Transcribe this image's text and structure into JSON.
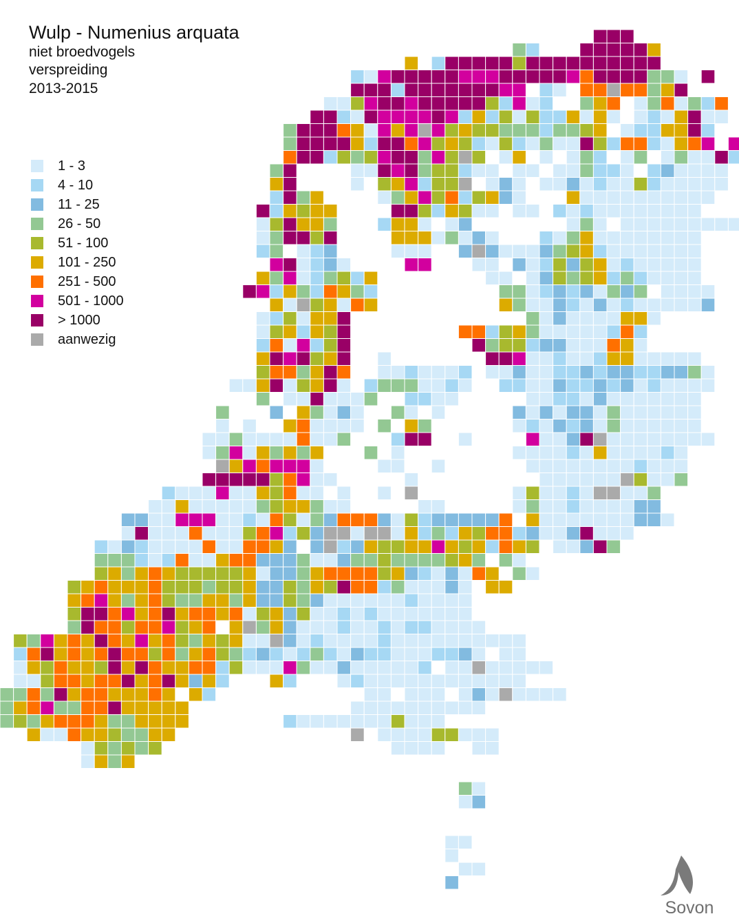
{
  "header": {
    "title": "Wulp - Numenius arquata",
    "lines": [
      "niet broedvogels",
      "verspreiding",
      "2013-2015"
    ]
  },
  "legend": [
    {
      "label": "1 - 3",
      "color": "#d4ebfa"
    },
    {
      "label": "4 - 10",
      "color": "#a6d8f4"
    },
    {
      "label": "11 - 25",
      "color": "#82bbe0"
    },
    {
      "label": "26 - 50",
      "color": "#93c893"
    },
    {
      "label": "51 - 100",
      "color": "#a8b92e"
    },
    {
      "label": "101 - 250",
      "color": "#dcab00"
    },
    {
      "label": "251 - 500",
      "color": "#ff7000"
    },
    {
      "label": "501 - 1000",
      "color": "#d2009e"
    },
    {
      "label": "> 1000",
      "color": "#990066"
    },
    {
      "label": "aanwezig",
      "color": "#aaaaaa"
    }
  ],
  "grid": [
    "............................................999",
    "......................................42...999996",
    "..............................6.29999959999999999",
    "..........................2189999988899999879999441 9",
    "..........................9992999999988 21.77a77469",
    "........................11589989999952812..467.1471427",
    ".......................99219888898262515226161.1216911",
    ".....................4999761868a8565544424456.1226692",
    ".....................49999629978565215214119527721678 8",
    ".....................7992545899485a5.16.1.142 14.141192",
    "....................49....11989455211.11.114221.231111",
    "....................69....1.568255a.131.11312115211111",
    "....................2946....14685725631...61111111111",
    "...................926566....99526511.11.21211111111",
    "...................159664...2661.13.......141.111111111",
    "...................149959....66614131...214611111111",
    "...................24.123....111..3a3111345621111111",
    "....................891231....88...11.31253561211111",
    "...................648124526........11.1354562421111",
    "..................9826427642.........44123231434 1111",
    "....................61a56176.........6411321312111113",
    "...................1251669.............4131111661",
    "...................1562659........77256411111272",
    "...................2718259.........9455233111761",
    "...................6989569..1.......9981121126611111",
    "...................5774697..1121112.11311223233223341",
    ".................116915691.24441121..2211322323121111",
    "...................4.1191114..2211.....1122131111111",
    "................4...3.64131..41.1.....31313314111111",
    "................1.1..671111.4.64......12132314111111",
    "...............11411117114...299..1....81139a11111111",
    "...............148164646...4.1........1111216111121",
    "................a6878881....11..1......111111112111",
    "...............9999957811.....1.........111111a5114",
    "............211181165711.1..1.a.......151121aa114",
    "...........116111114566411.....11.....14112111133",
    ".........33118881121751437773152333337 61111111331",
    ".........191117111578253aa1aa162426577231139111",
    ".......213211117117763 3a236556686562765.11394",
    ".......44421271167733341134454444564 41",
    ".......564676555556133467777563213176 41",
    ".....567666755545563354659772411131 66",
    ".....678646754466463354311111121111",
    ".....599786796776715635112121111111",
    ".....49775778567 6a46311121121221111",
    ".5486769768675465611a312111121111111111",
    ".27967679775746754232124213221112231 11",
    ".1657665969766772511184113111112 11a11111",
    ".1157767796796362...62...12111111111111",
    "4474967766676 62...........11.111.131a1111",
    "46784477966666............1111111111",
    "45467776446666.......211111115111",
    "..61176654466.............a.111155111",
    "......154545.................1111..11",
    "......1646",
    "",
    "..................................41",
    "..................................13",
    "",
    "",
    ".................................11",
    ".................................1",
    "..................................11",
    ".................................3"
  ],
  "logo": "Sovon"
}
